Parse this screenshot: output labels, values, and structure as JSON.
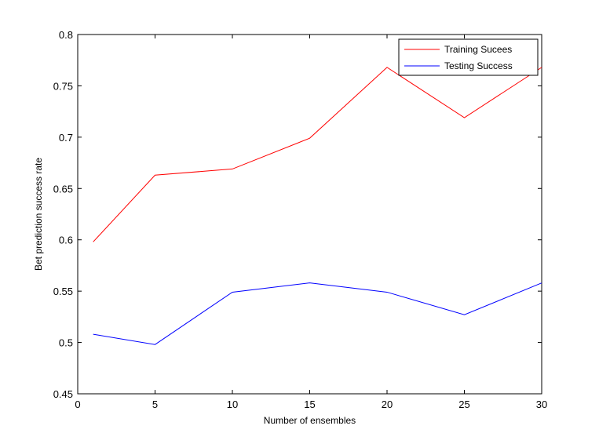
{
  "chart_data": {
    "type": "line",
    "title": "",
    "xlabel": "Number of ensembles",
    "ylabel": "Bet prediction success rate",
    "xlim": [
      0,
      30
    ],
    "ylim": [
      0.45,
      0.8
    ],
    "xticks": [
      0,
      5,
      10,
      15,
      20,
      25,
      30
    ],
    "yticks": [
      0.45,
      0.5,
      0.55,
      0.6,
      0.65,
      0.7,
      0.75,
      0.8
    ],
    "x_tick_labels": [
      "0",
      "5",
      "10",
      "15",
      "20",
      "25",
      "30"
    ],
    "y_tick_labels": [
      "0.45",
      "0.5",
      "0.55",
      "0.6",
      "0.65",
      "0.7",
      "0.75",
      "0.8"
    ],
    "grid": false,
    "legend_position": "top-right",
    "x": [
      1,
      5,
      10,
      15,
      20,
      25,
      30
    ],
    "series": [
      {
        "name": "Training Sucees",
        "color": "#ff0000",
        "values": [
          0.598,
          0.663,
          0.669,
          0.699,
          0.768,
          0.719,
          0.768
        ]
      },
      {
        "name": "Testing Success",
        "color": "#0000ff",
        "values": [
          0.508,
          0.498,
          0.549,
          0.558,
          0.549,
          0.527,
          0.558
        ]
      }
    ]
  }
}
